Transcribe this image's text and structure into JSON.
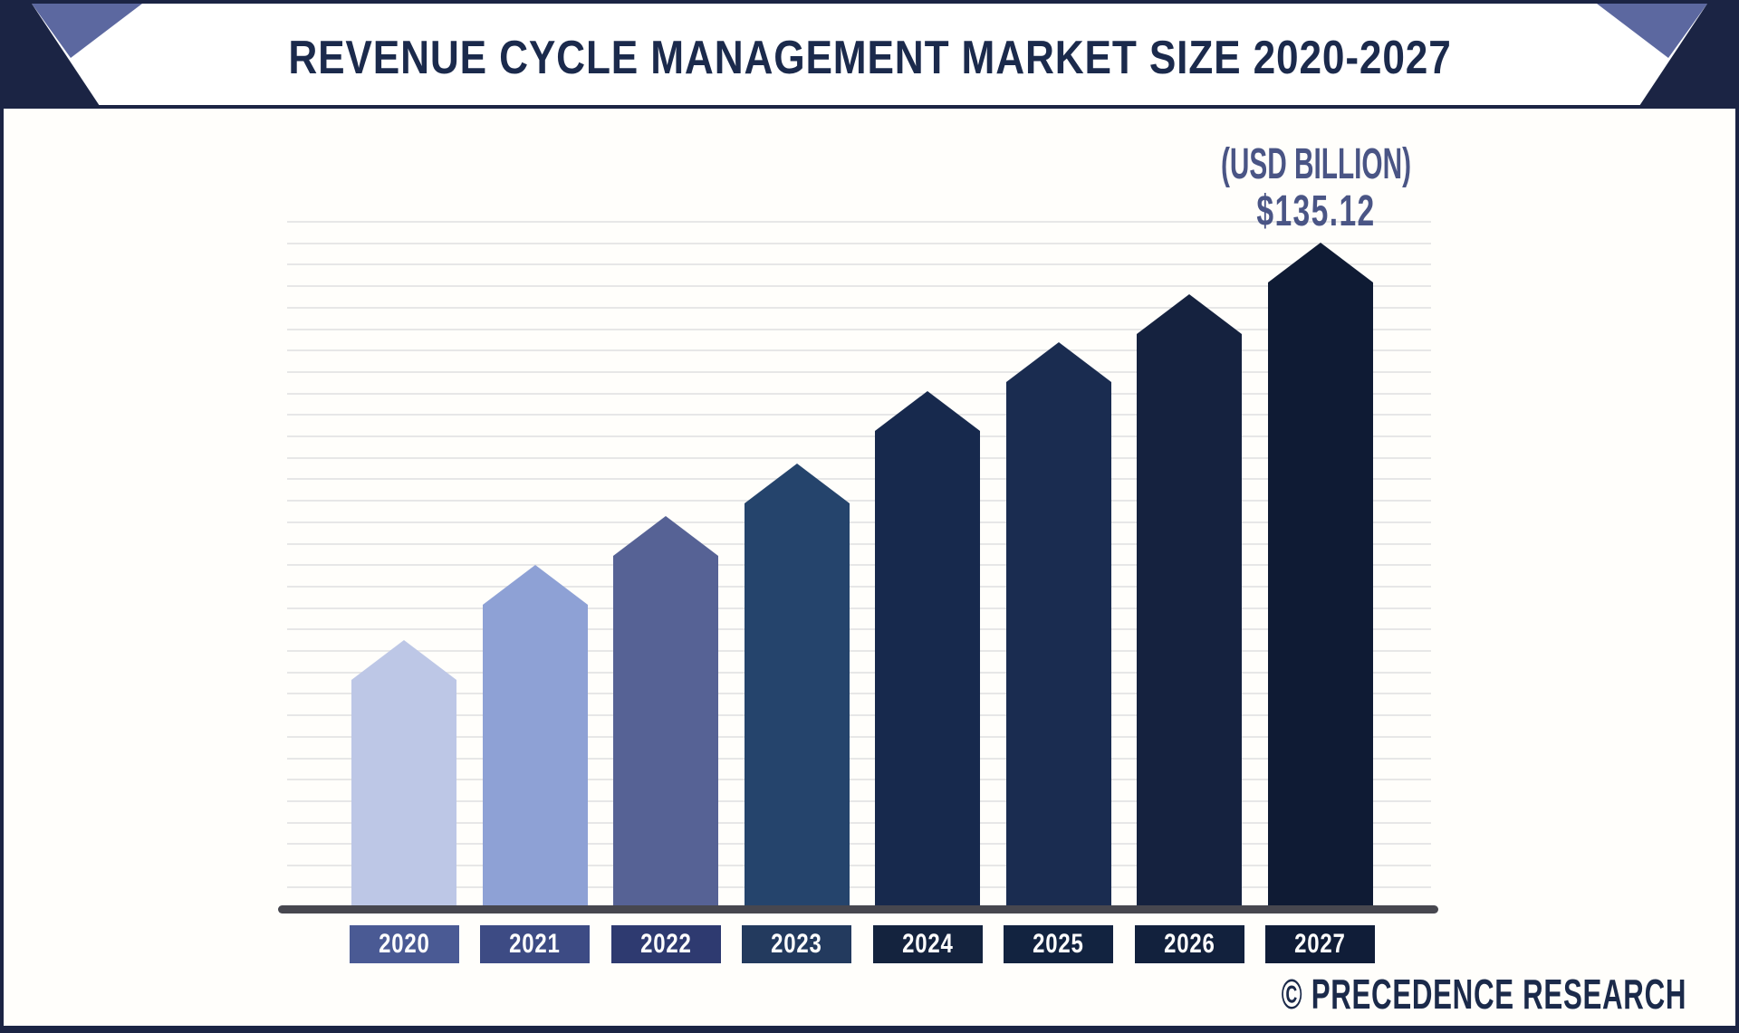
{
  "header": {
    "title": "REVENUE CYCLE MANAGEMENT MARKET SIZE 2020-2027"
  },
  "annotation": {
    "unit": "(USD BILLION)",
    "value": "$135.12"
  },
  "footer": {
    "brand": "© PRECEDENCE RESEARCH"
  },
  "colors": {
    "background": "#fffefb",
    "header_bg": "#ffffff",
    "frame_navy": "#1b2444",
    "corner_dark": "#1b2444",
    "corner_light": "#5c68a0",
    "title_text": "#1b2a4c",
    "annotation_text": "#4a5585",
    "axis_line": "#47474f",
    "gridline": "#e7e7e7",
    "year_text": "#ffffff",
    "footer_text": "#1b2a4a"
  },
  "chart_data": {
    "type": "bar",
    "title": "REVENUE CYCLE MANAGEMENT MARKET SIZE 2020-2027",
    "unit_label": "(USD BILLION)",
    "categories": [
      "2020",
      "2021",
      "2022",
      "2023",
      "2024",
      "2025",
      "2026",
      "2027"
    ],
    "values": [
      54.0,
      69.4,
      79.4,
      90.0,
      104.8,
      114.8,
      124.6,
      135.12
    ],
    "labeled_values": {
      "2027": "$135.12"
    },
    "xlabel": "",
    "ylabel": "",
    "ylim": [
      0,
      140
    ],
    "grid": "horizontal",
    "legend": "none",
    "bar_colors": [
      "#bdc7e6",
      "#8ea1d5",
      "#566295",
      "#25446c",
      "#17294d",
      "#1a2c50",
      "#15223f",
      "#0f1b34"
    ],
    "year_label_colors": [
      "#4a5a94",
      "#3d4b84",
      "#2e3a70",
      "#233a5e",
      "#14233e",
      "#122340",
      "#12213d",
      "#101d38"
    ]
  }
}
